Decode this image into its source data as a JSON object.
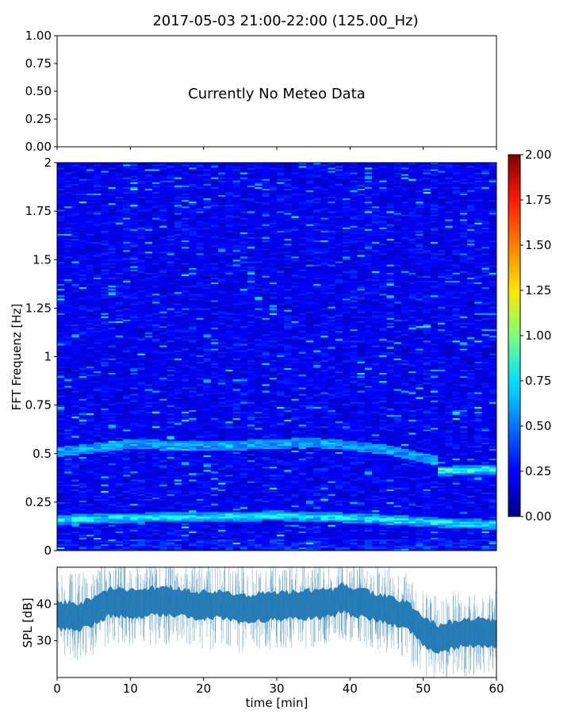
{
  "title": "2017-05-03 21:00-22:00 (125.00_Hz)",
  "chart_data": [
    {
      "type": "empty",
      "panel": "meteo",
      "message": "Currently No Meteo Data",
      "ylim": [
        0,
        1
      ],
      "yticks": [
        "0.00",
        "0.25",
        "0.50",
        "0.75",
        "1.00"
      ],
      "xlim": [
        0,
        60
      ]
    },
    {
      "type": "heatmap",
      "panel": "spectrogram",
      "ylabel": "FFT Frequenz [Hz]",
      "xlim": [
        0,
        60
      ],
      "ylim": [
        0,
        2
      ],
      "yticks": [
        "0",
        "0.25",
        "0.5",
        "0.75",
        "1",
        "1.25",
        "1.5",
        "1.75",
        "2"
      ],
      "colormap": "jet",
      "colorbar": {
        "range": [
          0,
          2
        ],
        "ticks": [
          "0.00",
          "0.25",
          "0.50",
          "0.75",
          "1.00",
          "1.25",
          "1.50",
          "1.75",
          "2.00"
        ]
      },
      "ridges": [
        {
          "points": [
            [
              0,
              0.16
            ],
            [
              10,
              0.17
            ],
            [
              20,
              0.175
            ],
            [
              30,
              0.18
            ],
            [
              40,
              0.17
            ],
            [
              50,
              0.15
            ],
            [
              55,
              0.14
            ],
            [
              60,
              0.135
            ]
          ],
          "peak": 0.9
        },
        {
          "points": [
            [
              0,
              0.51
            ],
            [
              10,
              0.55
            ],
            [
              20,
              0.54
            ],
            [
              30,
              0.55
            ],
            [
              35,
              0.56
            ],
            [
              45,
              0.52
            ],
            [
              50,
              0.48
            ],
            [
              52,
              0.46
            ]
          ],
          "peak": 0.7
        },
        {
          "points": [
            [
              52,
              0.41
            ],
            [
              60,
              0.42
            ]
          ],
          "peak": 1.0
        }
      ]
    },
    {
      "type": "line",
      "panel": "spl",
      "ylabel": "SPL [dB]",
      "xlabel": "time [min]",
      "xlim": [
        0,
        60
      ],
      "ylim": [
        20,
        50
      ],
      "yticks": [
        "30",
        "40"
      ],
      "xticks": [
        "0",
        "10",
        "20",
        "30",
        "40",
        "50",
        "60"
      ],
      "color": "#1f77b4",
      "x": [
        0,
        3,
        5,
        7,
        10,
        15,
        20,
        23,
        25,
        30,
        35,
        38,
        39,
        40,
        42,
        45,
        48,
        50,
        52,
        55,
        58,
        60
      ],
      "y": [
        37,
        36.5,
        38,
        40.5,
        40,
        41,
        39.5,
        40,
        38.5,
        39.5,
        40,
        40.5,
        42,
        40.5,
        40,
        38.5,
        36.5,
        32.5,
        30.5,
        32,
        32.5,
        32
      ]
    }
  ]
}
